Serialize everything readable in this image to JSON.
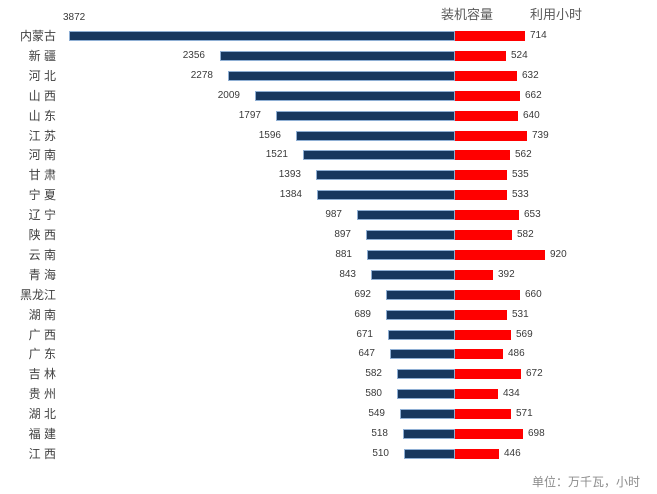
{
  "header": {
    "capacity_label": "装机容量",
    "hours_label": "利用小时"
  },
  "footer": {
    "unit_note": "单位：万千瓦，小时"
  },
  "colors": {
    "capacity_bar": "#17375E",
    "capacity_bar_border": "#8FAFD4",
    "hours_bar": "#FF0000",
    "value_text": "#3A3A3A",
    "category_text": "#404040",
    "header_text": "#595959",
    "footer_text": "#8C8C8C"
  },
  "chart_data": {
    "type": "bar",
    "variant": "diverging-horizontal",
    "title": "",
    "xlabel": "",
    "ylabel": "",
    "legend_position": "top",
    "grid": false,
    "unit_note": "单位：万千瓦，小时",
    "categories": [
      "内蒙古",
      "新 疆",
      "河 北",
      "山 西",
      "山 东",
      "江 苏",
      "河 南",
      "甘 肃",
      "宁 夏",
      "辽 宁",
      "陕 西",
      "云 南",
      "青 海",
      "黑龙江",
      "湖 南",
      "广 西",
      "广 东",
      "吉 林",
      "贵 州",
      "湖 北",
      "福 建",
      "江 西"
    ],
    "series": [
      {
        "name": "装机容量",
        "side": "left",
        "color": "#17375E",
        "values": [
          3872,
          2356,
          2278,
          2009,
          1797,
          1596,
          1521,
          1393,
          1384,
          987,
          897,
          881,
          843,
          692,
          689,
          671,
          647,
          582,
          580,
          549,
          518,
          510
        ]
      },
      {
        "name": "利用小时",
        "side": "right",
        "color": "#FF0000",
        "values": [
          714,
          524,
          632,
          662,
          640,
          739,
          562,
          535,
          533,
          653,
          582,
          920,
          392,
          660,
          531,
          569,
          486,
          672,
          434,
          571,
          698,
          446
        ]
      }
    ]
  }
}
